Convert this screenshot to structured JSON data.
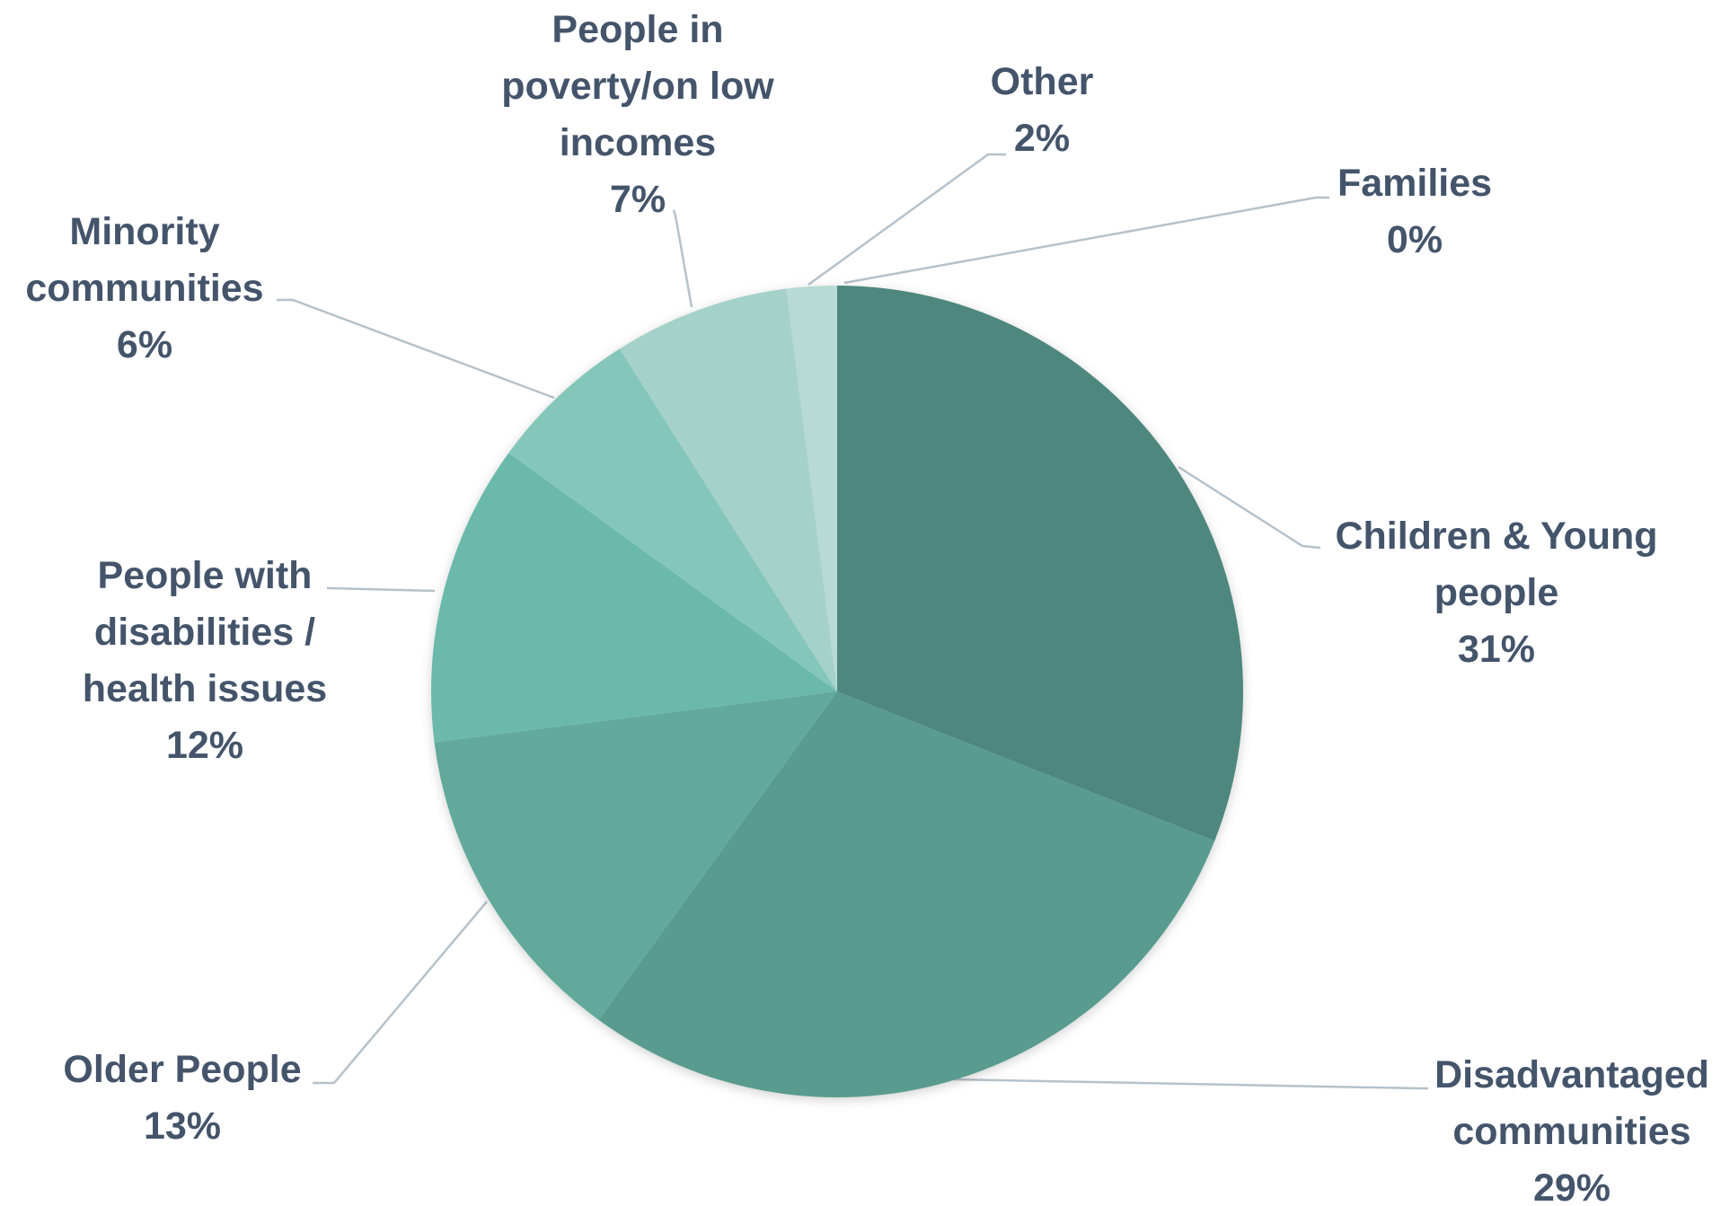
{
  "chart_data": {
    "type": "pie",
    "title": "",
    "slices": [
      {
        "label": "Children & Young people",
        "label_lines": [
          "Children & Young",
          "people"
        ],
        "value": 31,
        "value_label": "31%",
        "color": "#4d877d"
      },
      {
        "label": "Disadvantaged communities",
        "label_lines": [
          "Disadvantaged",
          "communities"
        ],
        "value": 29,
        "value_label": "29%",
        "color": "#5a9b8f"
      },
      {
        "label": "Older People",
        "label_lines": [
          "Older People"
        ],
        "value": 13,
        "value_label": "13%",
        "color": "#62a99c"
      },
      {
        "label": "People with disabilities / health issues",
        "label_lines": [
          "People with",
          "disabilities /",
          "health issues"
        ],
        "value": 12,
        "value_label": "12%",
        "color": "#6bb9ab"
      },
      {
        "label": "Minority communities",
        "label_lines": [
          "Minority",
          "communities"
        ],
        "value": 6,
        "value_label": "6%",
        "color": "#85c6ba"
      },
      {
        "label": "People in poverty/on low incomes",
        "label_lines": [
          "People in",
          "poverty/on low",
          "incomes"
        ],
        "value": 7,
        "value_label": "7%",
        "color": "#a4d1c9"
      },
      {
        "label": "Other",
        "label_lines": [
          "Other"
        ],
        "value": 2,
        "value_label": "2%",
        "color": "#b7dbd4"
      },
      {
        "label": "Families",
        "label_lines": [
          "Families"
        ],
        "value": 0,
        "value_label": "0%",
        "color": "#c8e2dc"
      }
    ],
    "start_angle": "12 o'clock",
    "direction": "clockwise",
    "legend": "none",
    "colors": {
      "label_text": "#44546a",
      "leader_line": "#b4c2cc"
    }
  }
}
